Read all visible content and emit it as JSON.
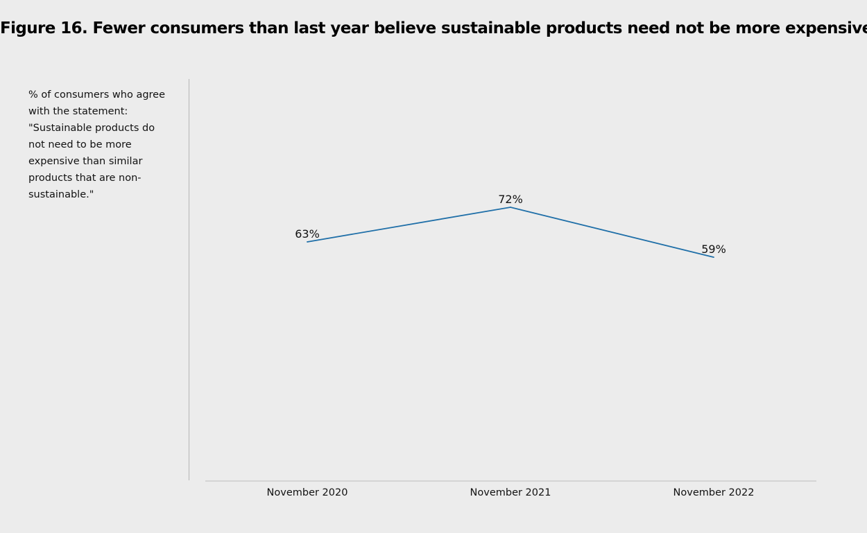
{
  "title": "Figure 16. Fewer consumers than last year believe sustainable products need not be more expensive",
  "ylabel_lines": [
    "% of consumers who agree",
    "with the statement:",
    "\"Sustainable products do",
    "not need to be more",
    "expensive than similar",
    "products that are non-",
    "sustainable.\""
  ],
  "chart_data": {
    "type": "line",
    "title": "Figure 16. Fewer consumers than last year believe sustainable products need not be more expensive",
    "ylabel": "% of consumers who agree with the statement: \"Sustainable products do not need to be more expensive than similar products that are non-sustainable.\"",
    "xlabel": "",
    "categories": [
      "November 2020",
      "November 2021",
      "November 2022"
    ],
    "series": [
      {
        "values": [
          63,
          72,
          59
        ],
        "labels": [
          "63%",
          "72%",
          "59%"
        ],
        "color": "#1f6fa8"
      }
    ],
    "grid": false,
    "legend": "none"
  }
}
